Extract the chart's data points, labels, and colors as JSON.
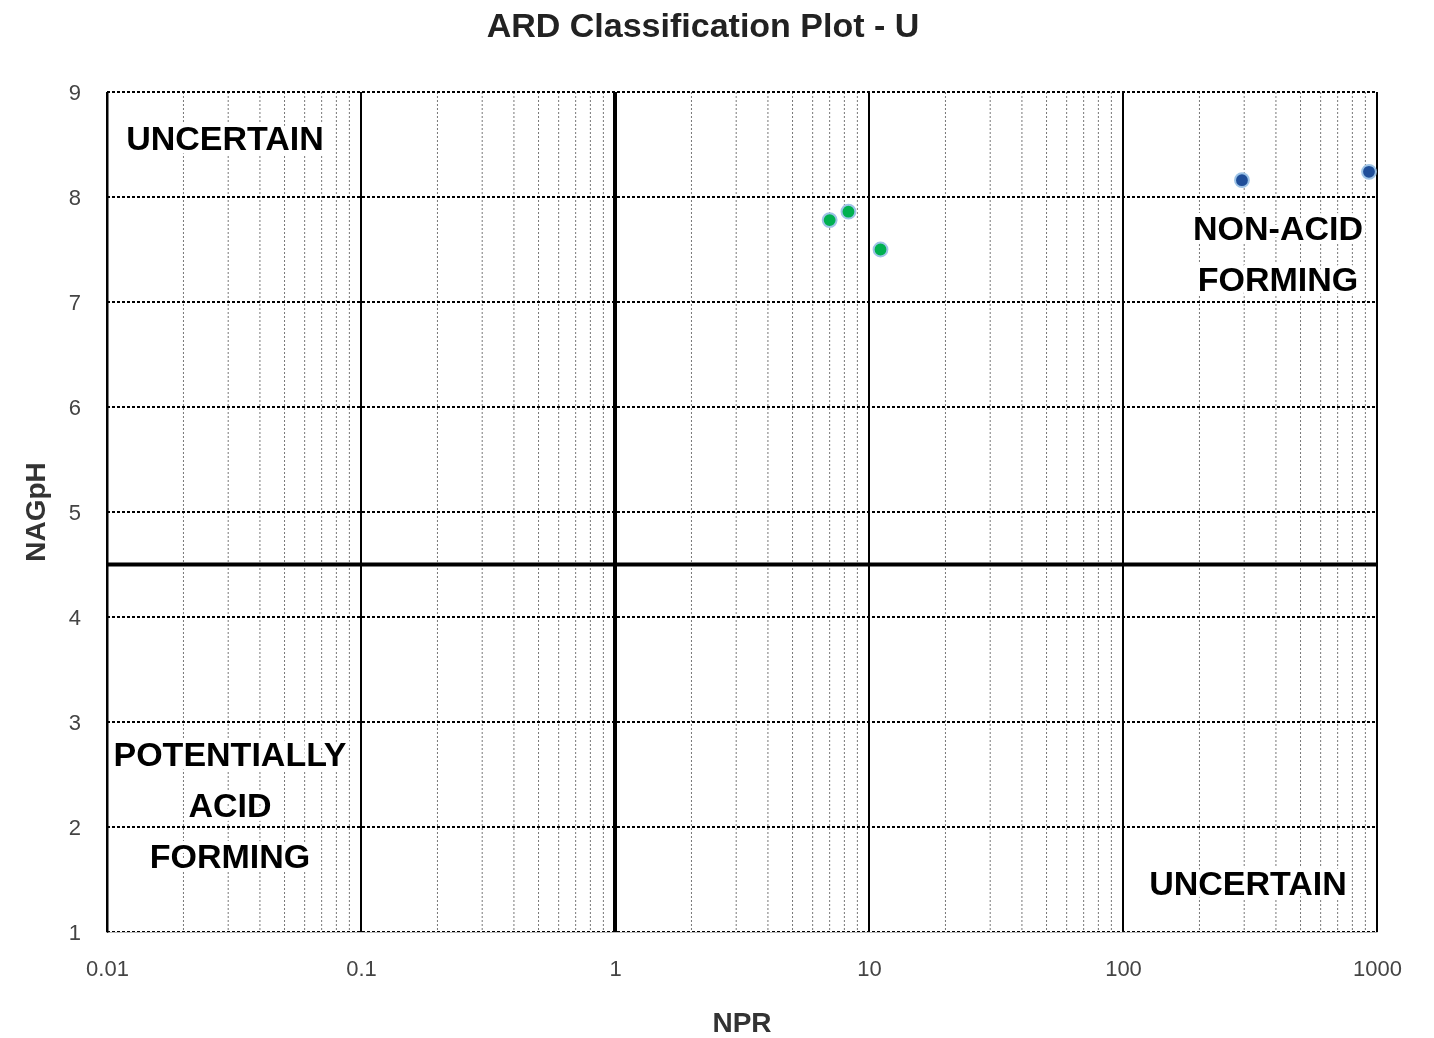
{
  "chart_data": {
    "type": "scatter",
    "title": "ARD Classification Plot - U",
    "xlabel": "NPR",
    "ylabel": "NAGpH",
    "log": "x",
    "xlim": [
      0.01,
      1000
    ],
    "xticks": [
      0.01,
      0.1,
      1,
      10,
      100,
      1000
    ],
    "ylim": [
      1,
      9
    ],
    "yticks": [
      1,
      2,
      3,
      4,
      5,
      6,
      7,
      8,
      9
    ],
    "grid": true,
    "marker": "circle",
    "series": [
      {
        "color": "#00b050",
        "x": [
          7,
          8.3,
          11.1
        ],
        "values": [
          7.78,
          7.86,
          7.5
        ]
      },
      {
        "color": "#1f4e99",
        "x": [
          294,
          930
        ],
        "values": [
          8.16,
          8.24
        ]
      }
    ],
    "ref_lines": [
      {
        "axis": "x",
        "value": 1,
        "color": "#000000"
      },
      {
        "axis": "y",
        "value": 4.5,
        "color": "#000000"
      }
    ],
    "annotations": [
      "UNCERTAIN",
      "NON-ACID\nFORMING",
      "POTENTIALLY\nACID\nFORMING",
      "UNCERTAIN"
    ]
  }
}
